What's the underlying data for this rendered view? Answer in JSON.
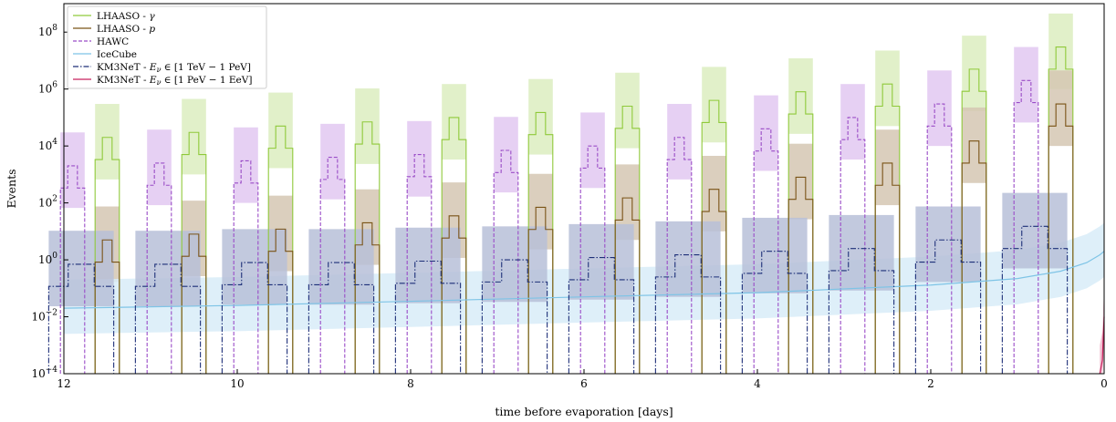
{
  "chart_data": {
    "type": "line",
    "xlabel": "time before evaporation [days]",
    "ylabel": "Events",
    "xlim": [
      12,
      0
    ],
    "ylim_log10": [
      -4,
      9
    ],
    "y_scale": "log",
    "x_ticks": [
      "12",
      "10",
      "8",
      "6",
      "4",
      "2",
      "0"
    ],
    "y_tick_exponents": [
      "-4",
      "-2",
      "0",
      "2",
      "4",
      "6",
      "8"
    ],
    "legend_position": "top-left",
    "grid": false,
    "series": [
      {
        "name": "LHAASO - γ",
        "label_prefix": "LHAASO - ",
        "label_symbol": "γ",
        "label_suffix": "",
        "color": "#8fc93a",
        "band_color": "#dcedc0",
        "dash": "",
        "peak_days": [
          11.5,
          10.5,
          9.5,
          8.5,
          7.5,
          6.5,
          5.5,
          4.5,
          3.5,
          2.5,
          1.5,
          0.5
        ],
        "peak_events": [
          20000,
          30000,
          50000,
          70000,
          100000,
          150000,
          250000,
          400000,
          800000,
          1500000,
          5000000,
          30000000
        ]
      },
      {
        "name": "LHAASO - p",
        "label_prefix": "LHAASO - ",
        "label_symbol": "p",
        "label_suffix": "",
        "color": "#7a5316",
        "band_color": "#d5c7b3",
        "dash": "",
        "peak_days": [
          11.5,
          10.5,
          9.5,
          8.5,
          7.5,
          6.5,
          5.5,
          4.5,
          3.5,
          2.5,
          1.5,
          0.5
        ],
        "peak_events": [
          5,
          8,
          12,
          20,
          35,
          70,
          150,
          300,
          800,
          2500,
          15000,
          300000
        ]
      },
      {
        "name": "HAWC",
        "label_prefix": "HAWC",
        "label_symbol": "",
        "label_suffix": "",
        "color": "#9a4cc7",
        "band_color": "#e2c8f1",
        "dash": "4,2",
        "peak_days": [
          11.9,
          10.9,
          9.9,
          8.9,
          7.9,
          6.9,
          5.9,
          4.9,
          3.9,
          2.9,
          1.9,
          0.9
        ],
        "peak_events": [
          2000,
          2500,
          3000,
          4000,
          5000,
          7000,
          10000,
          20000,
          40000,
          100000,
          300000,
          2000000
        ]
      },
      {
        "name": "IceCube",
        "label_prefix": "IceCube",
        "label_symbol": "",
        "label_suffix": "",
        "color": "#7ec4e6",
        "band_color": "#d8ecf8",
        "dash": "",
        "days": [
          12,
          10,
          8,
          6,
          4,
          2,
          1,
          0.5,
          0.2,
          0.05,
          0
        ],
        "events": [
          0.02,
          0.025,
          0.035,
          0.05,
          0.07,
          0.13,
          0.22,
          0.4,
          0.8,
          1.5,
          2
        ]
      },
      {
        "name": "KM3NeT - E_ν ∈ [1 TeV − 1 PeV]",
        "label_prefix": "KM3NeT - ",
        "label_symbol": "E",
        "label_sub": "ν",
        "label_suffix": " ∈ [1 TeV − 1 PeV]",
        "color": "#1d2f78",
        "band_color": "#b7c0d8",
        "dash": "6,2,1.5,2",
        "peak_days": [
          11.8,
          10.8,
          9.8,
          8.8,
          7.8,
          6.8,
          5.8,
          4.8,
          3.8,
          2.8,
          1.8,
          0.8
        ],
        "peak_events": [
          0.7,
          0.7,
          0.8,
          0.8,
          0.9,
          1.0,
          1.2,
          1.5,
          2.0,
          2.5,
          5,
          15
        ]
      },
      {
        "name": "KM3NeT - E_ν ∈ [1 PeV − 1 EeV]",
        "label_prefix": "KM3NeT - ",
        "label_symbol": "E",
        "label_sub": "ν",
        "label_suffix": " ∈ [1 PeV − 1 EeV]",
        "color": "#c7215d",
        "band_color": "#f0b6cb",
        "dash": "",
        "days": [
          0.05,
          0.02,
          0.01,
          0
        ],
        "events": [
          0.0001,
          0.0003,
          0.002,
          0.01
        ]
      }
    ]
  }
}
